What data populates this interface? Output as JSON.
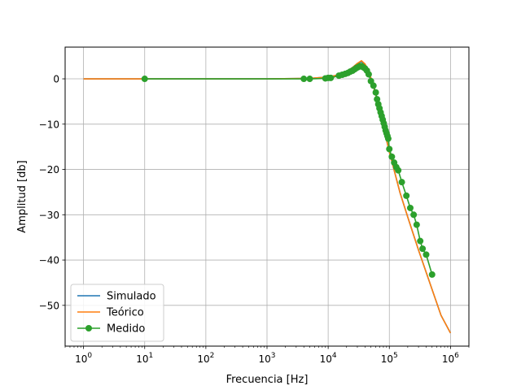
{
  "chart_data": {
    "type": "line",
    "title": "",
    "xlabel": "Frecuencia [Hz]",
    "ylabel": "Amplitud [db]",
    "x_scale": "log",
    "xlim": [
      0.5,
      2000000
    ],
    "ylim": [
      -59,
      7
    ],
    "x_ticks": [
      1,
      10,
      100,
      1000,
      10000,
      100000,
      1000000
    ],
    "x_tick_labels": [
      {
        "base": "10",
        "exp": "0"
      },
      {
        "base": "10",
        "exp": "1"
      },
      {
        "base": "10",
        "exp": "2"
      },
      {
        "base": "10",
        "exp": "3"
      },
      {
        "base": "10",
        "exp": "4"
      },
      {
        "base": "10",
        "exp": "5"
      },
      {
        "base": "10",
        "exp": "6"
      }
    ],
    "y_ticks": [
      0,
      -10,
      -20,
      -30,
      -40,
      -50
    ],
    "y_tick_labels": [
      "0",
      "−10",
      "−20",
      "−30",
      "−40",
      "−50"
    ],
    "grid": true,
    "legend_position": "bottom-left",
    "series": [
      {
        "name": "Simulado",
        "color": "#1f77b4",
        "marker": "none",
        "x": [
          1,
          10,
          100,
          1000,
          5000,
          10000,
          15000,
          20000,
          25000,
          30000,
          35000,
          40000,
          45000,
          50000,
          60000,
          70000,
          80000,
          100000,
          150000,
          200000,
          300000,
          500000,
          700000,
          1000000
        ],
        "y": [
          0,
          0,
          0,
          0,
          0.1,
          0.4,
          0.9,
          1.6,
          2.5,
          3.4,
          3.8,
          3.2,
          1.8,
          0.2,
          -3.5,
          -7.3,
          -10.6,
          -16.1,
          -25.2,
          -30.5,
          -37.8,
          -46.5,
          -52.2,
          -56.1
        ]
      },
      {
        "name": "Teórico",
        "color": "#ff7f0e",
        "marker": "none",
        "x": [
          1,
          10,
          100,
          1000,
          5000,
          10000,
          15000,
          20000,
          25000,
          30000,
          35000,
          40000,
          45000,
          50000,
          60000,
          70000,
          80000,
          100000,
          150000,
          200000,
          300000,
          500000,
          700000,
          1000000
        ],
        "y": [
          0,
          0,
          0,
          0,
          0.1,
          0.4,
          0.9,
          1.6,
          2.5,
          3.4,
          4.0,
          3.3,
          1.9,
          0.2,
          -3.5,
          -7.3,
          -10.6,
          -16.1,
          -25.2,
          -30.5,
          -37.8,
          -46.5,
          -52.2,
          -56.1
        ]
      },
      {
        "name": "Medido",
        "color": "#2ca02c",
        "marker": "circle",
        "x": [
          10,
          4000,
          5000,
          9000,
          10000,
          11000,
          15000,
          17000,
          19000,
          21000,
          23000,
          25000,
          27000,
          29000,
          31000,
          33000,
          35000,
          37000,
          40000,
          43000,
          46000,
          50000,
          55000,
          60000,
          63000,
          66000,
          69000,
          72000,
          75000,
          78000,
          81000,
          84000,
          87000,
          90000,
          93000,
          96000,
          100000,
          110000,
          120000,
          130000,
          140000,
          160000,
          190000,
          220000,
          250000,
          280000,
          320000,
          350000,
          400000,
          500000
        ],
        "y": [
          0,
          0,
          0,
          0.1,
          0.2,
          0.2,
          0.7,
          0.9,
          1.1,
          1.3,
          1.6,
          1.8,
          2.1,
          2.4,
          2.6,
          2.8,
          2.8,
          2.6,
          2.3,
          1.8,
          1.0,
          -0.5,
          -1.5,
          -3.0,
          -4.5,
          -5.6,
          -6.5,
          -7.4,
          -8.2,
          -9.0,
          -9.8,
          -10.6,
          -11.4,
          -12.0,
          -12.6,
          -13.2,
          -15.5,
          -17.2,
          -18.5,
          -19.5,
          -20.2,
          -22.8,
          -25.8,
          -28.5,
          -30.0,
          -32.2,
          -35.8,
          -37.5,
          -38.8,
          -43.2
        ]
      }
    ]
  }
}
